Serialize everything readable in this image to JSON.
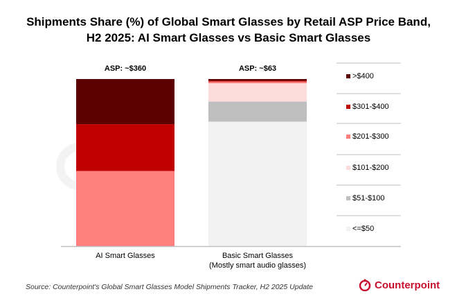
{
  "title_line1": "Shipments Share (%) of Global Smart Glasses by Retail ASP Price Band,",
  "title_line2": "H2 2025: AI Smart Glasses vs Basic Smart Glasses",
  "source": "Source: Counterpoint's Global Smart Glasses Model Shipments Tracker, H2 2025 Update",
  "logo_text": "Counterpoint",
  "watermark_text": "counterpoint",
  "chart_data": {
    "type": "stacked-bar",
    "unit": "%",
    "ylim": [
      0,
      100
    ],
    "grid": false,
    "legend_placement": "right",
    "categories": [
      "AI Smart Glasses",
      "Basic Smart Glasses"
    ],
    "category_sublabels": [
      "",
      "(Mostly smart audio glasses)"
    ],
    "annotations": [
      "ASP: ~$360",
      "ASP: ~$63"
    ],
    "series": [
      {
        "name": "<=$50",
        "color": "#f2f2f2",
        "values": [
          0,
          74.5
        ]
      },
      {
        "name": "$51-$100",
        "color": "#bfbfbf",
        "values": [
          0,
          12
        ]
      },
      {
        "name": "$101-$200",
        "color": "#ffdcdc",
        "values": [
          0,
          11
        ]
      },
      {
        "name": "$201-$300",
        "color": "#ff7f7f",
        "values": [
          45,
          1
        ]
      },
      {
        "name": "$301-$400",
        "color": "#c00000",
        "values": [
          28,
          0.5
        ]
      },
      {
        "name": ">$400",
        "color": "#5c0000",
        "values": [
          27,
          1
        ]
      }
    ]
  }
}
